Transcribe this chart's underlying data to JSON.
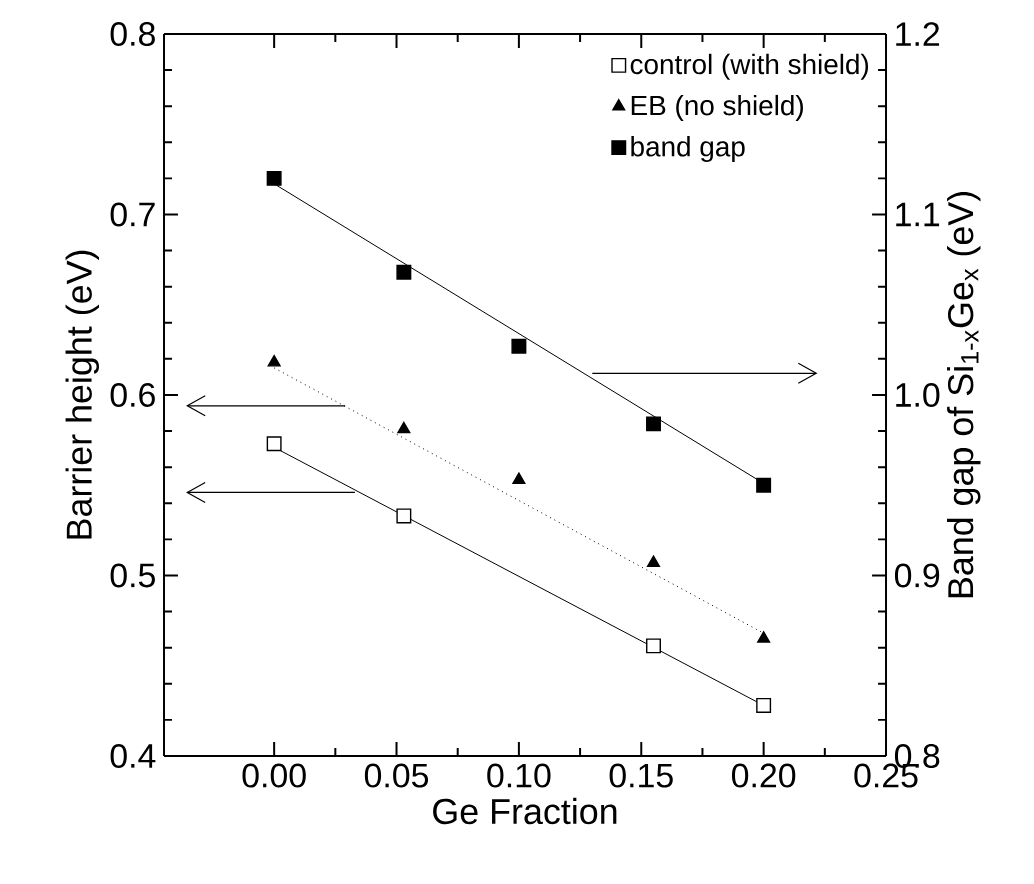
{
  "chart_data": {
    "type": "scatter",
    "xlabel": "Ge Fraction",
    "ylabel": "Barrier height (eV)",
    "y2label": "Band gap of Si$_{1-x}$Ge$_{x}$ (eV)",
    "xlim": [
      -0.045,
      0.25
    ],
    "xticks": [
      {
        "value": 0,
        "label": "0.00"
      },
      {
        "value": 0.05,
        "label": "0.05"
      },
      {
        "value": 0.1,
        "label": "0.10"
      },
      {
        "value": 0.15,
        "label": "0.15"
      },
      {
        "value": 0.2,
        "label": "0.20"
      },
      {
        "value": 0.25,
        "label": "0.25"
      }
    ],
    "ylim": [
      0.4,
      0.8
    ],
    "yticks": [
      0.4,
      0.5,
      0.6,
      0.7,
      0.8
    ],
    "y2lim": [
      0.8,
      1.2
    ],
    "y2ticks": [
      0.8,
      0.9,
      {
        "value": 1,
        "label": "1.0"
      },
      1.1,
      1.2
    ],
    "legend": "top right",
    "grid": false,
    "series": [
      {
        "name": "control (with shield)",
        "color": "#ffffff",
        "marker": "square",
        "x": [
          0,
          0.053,
          0.155,
          0.2
        ],
        "values": [
          0.573,
          0.533,
          0.461,
          0.428
        ]
      },
      {
        "name": "EB (no shield)",
        "color": "#000000",
        "marker": "triangle",
        "x": [
          0,
          0.053,
          0.1,
          0.155,
          0.2
        ],
        "values": [
          0.618,
          0.581,
          0.553,
          0.507,
          0.465
        ]
      },
      {
        "name": "band gap",
        "color": "#000000",
        "marker": "square",
        "axis": "y2",
        "x": [
          0,
          0.053,
          0.1,
          0.155,
          0.2
        ],
        "values": [
          1.12,
          1.068,
          1.027,
          0.984,
          0.95
        ]
      },
      {
        "type": "line",
        "color": "#000000",
        "line_style": "solid",
        "x": [
          0,
          0.2
        ],
        "values": [
          0.571,
          0.428
        ]
      },
      {
        "type": "line",
        "color": "#000000",
        "line_style": "dotted",
        "x": [
          0,
          0.2
        ],
        "values": [
          0.615,
          0.468
        ]
      },
      {
        "type": "line",
        "color": "#000000",
        "line_style": "solid",
        "axis": "y2",
        "x": [
          0,
          0.2
        ],
        "values": [
          1.117,
          0.951
        ]
      }
    ]
  }
}
